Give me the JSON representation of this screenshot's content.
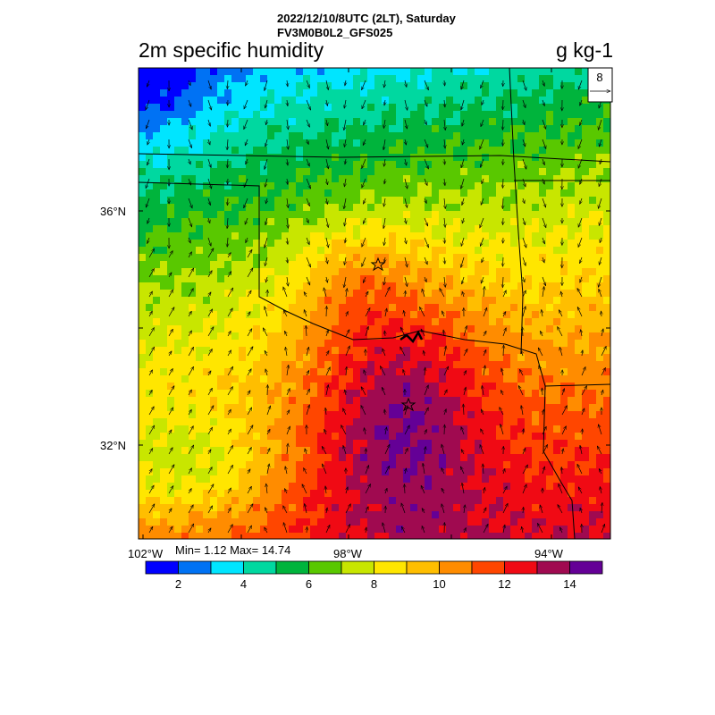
{
  "header": {
    "line1": "2022/12/10/8UTC (2LT), Saturday",
    "line2": "FV3M0B0L2_GFS025"
  },
  "title": "2m specific humidity",
  "units": "g kg-1",
  "reference_vector": {
    "label": "8"
  },
  "axes": {
    "lat_labels": [
      "36°N",
      "32°N"
    ],
    "lon_labels": [
      "102°W",
      "98°W",
      "94°W"
    ]
  },
  "stats": {
    "text": "Min= 1.12 Max= 14.74",
    "min": 1.12,
    "max": 14.74
  },
  "colorbar": {
    "tick_labels": [
      "2",
      "4",
      "6",
      "8",
      "10",
      "12",
      "14"
    ],
    "colors": [
      "#0000ff",
      "#0072f4",
      "#00e5ff",
      "#00d8a0",
      "#00b43c",
      "#59c800",
      "#c8e600",
      "#ffe600",
      "#ffbe00",
      "#ff8c00",
      "#ff4600",
      "#f00a14",
      "#a00a50",
      "#640096"
    ]
  },
  "markers": [
    {
      "name": "city-star-north",
      "shape": "star"
    },
    {
      "name": "city-star-south",
      "shape": "star"
    }
  ]
}
